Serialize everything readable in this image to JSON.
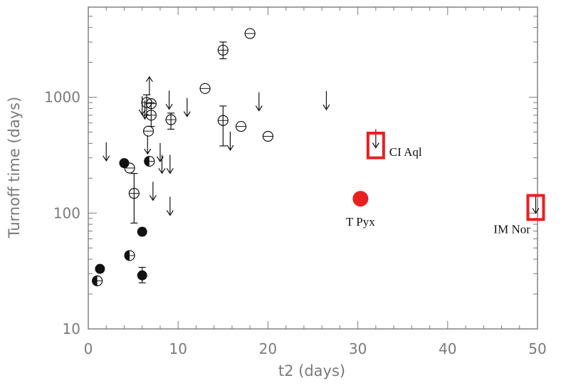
{
  "chart_data": {
    "type": "scatter",
    "title": "",
    "xlabel": "t2 (days)",
    "ylabel": "Turnoff time (days)",
    "xlim": [
      0,
      50
    ],
    "ylim": [
      10,
      6000
    ],
    "y_scale": "log",
    "x_ticks": [
      0,
      10,
      20,
      30,
      40,
      50
    ],
    "y_ticks": [
      10,
      100,
      1000
    ],
    "grid": false,
    "legend": "none",
    "colors": {
      "axis": "#7a7a7a",
      "marker": "#111111",
      "highlight": "#e8201f",
      "box": "#e8201f"
    },
    "series": [
      {
        "marker": "filled-circle",
        "points": [
          {
            "x": 1.3,
            "y": 33
          },
          {
            "x": 4.0,
            "y": 270
          },
          {
            "x": 6.0,
            "y": 69
          },
          {
            "x": 6.0,
            "y": 29,
            "err": [
              25,
              34
            ]
          }
        ]
      },
      {
        "marker": "half-filled-circle",
        "points": [
          {
            "x": 1.0,
            "y": 26
          },
          {
            "x": 4.6,
            "y": 43
          },
          {
            "x": 6.8,
            "y": 280
          }
        ]
      },
      {
        "marker": "open-circle",
        "points": [
          {
            "x": 4.6,
            "y": 245
          },
          {
            "x": 5.1,
            "y": 148,
            "err": [
              82,
              220
            ]
          },
          {
            "x": 6.5,
            "y": 900,
            "err": [
              700,
              1050
            ]
          },
          {
            "x": 6.7,
            "y": 510
          },
          {
            "x": 7.0,
            "y": 880
          },
          {
            "x": 7.0,
            "y": 700,
            "err": [
              560,
              900
            ]
          },
          {
            "x": 9.2,
            "y": 640,
            "err": [
              530,
              730
            ]
          },
          {
            "x": 13.0,
            "y": 1190
          },
          {
            "x": 15.0,
            "y": 2550,
            "err": [
              2150,
              3000
            ]
          },
          {
            "x": 15.0,
            "y": 630,
            "err": [
              380,
              840
            ]
          },
          {
            "x": 17.0,
            "y": 560
          },
          {
            "x": 18.0,
            "y": 3550
          },
          {
            "x": 20.0,
            "y": 460
          }
        ]
      },
      {
        "marker": "upper-limit-arrow",
        "points": [
          {
            "x": 2.0,
            "y": 340
          },
          {
            "x": 6.0,
            "y": 850
          },
          {
            "x": 6.3,
            "y": 780
          },
          {
            "x": 6.6,
            "y": 390
          },
          {
            "x": 7.2,
            "y": 155
          },
          {
            "x": 8.0,
            "y": 335
          },
          {
            "x": 8.2,
            "y": 265
          },
          {
            "x": 9.0,
            "y": 950
          },
          {
            "x": 9.1,
            "y": 265
          },
          {
            "x": 9.1,
            "y": 115
          },
          {
            "x": 11.0,
            "y": 820
          },
          {
            "x": 15.8,
            "y": 420
          },
          {
            "x": 19.0,
            "y": 920
          },
          {
            "x": 26.5,
            "y": 940
          },
          {
            "x": 32.0,
            "y": 440
          },
          {
            "x": 49.8,
            "y": 120
          }
        ]
      },
      {
        "marker": "lower-limit-arrow",
        "points": [
          {
            "x": 6.8,
            "y": 1250
          }
        ]
      }
    ],
    "highlight": {
      "x": 30.3,
      "y": 133
    },
    "boxes": [
      {
        "x": 32.0,
        "y_low": 300,
        "y_high": 490
      },
      {
        "x": 49.8,
        "y_low": 88,
        "y_high": 142
      }
    ],
    "annotations": [
      {
        "text": "CI Aql",
        "x": 33.5,
        "y": 340,
        "anchor": "start"
      },
      {
        "text": "T Pyx",
        "x": 30.3,
        "y": 85,
        "anchor": "middle"
      },
      {
        "text": "IM Nor",
        "x": 49.2,
        "y": 73,
        "anchor": "end"
      }
    ]
  }
}
